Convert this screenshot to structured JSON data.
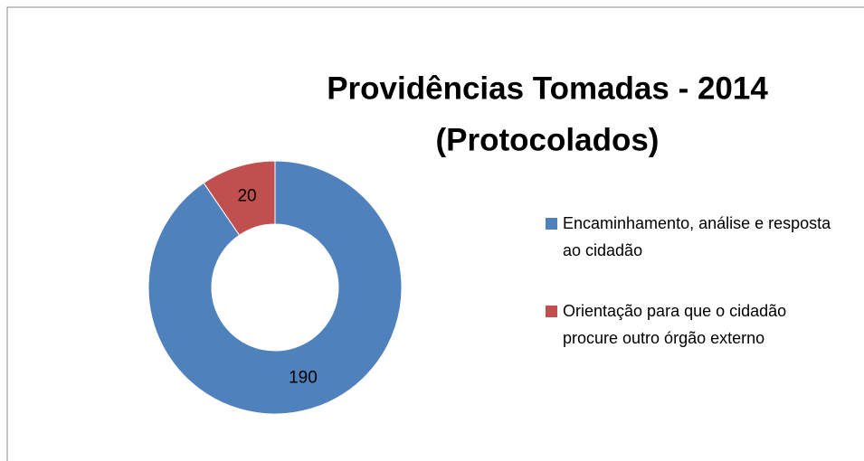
{
  "chart_data": {
    "type": "donut",
    "title": [
      "Providências  Tomadas - 2014",
      "(Protocolados)"
    ],
    "categories": [
      "Encaminhamento, análise e resposta ao cidadão",
      "Orientação para que o cidadão procure outro órgão externo"
    ],
    "values": [
      190,
      20
    ],
    "colors": [
      "#4f81bd",
      "#c0504d"
    ],
    "legend": "right"
  }
}
